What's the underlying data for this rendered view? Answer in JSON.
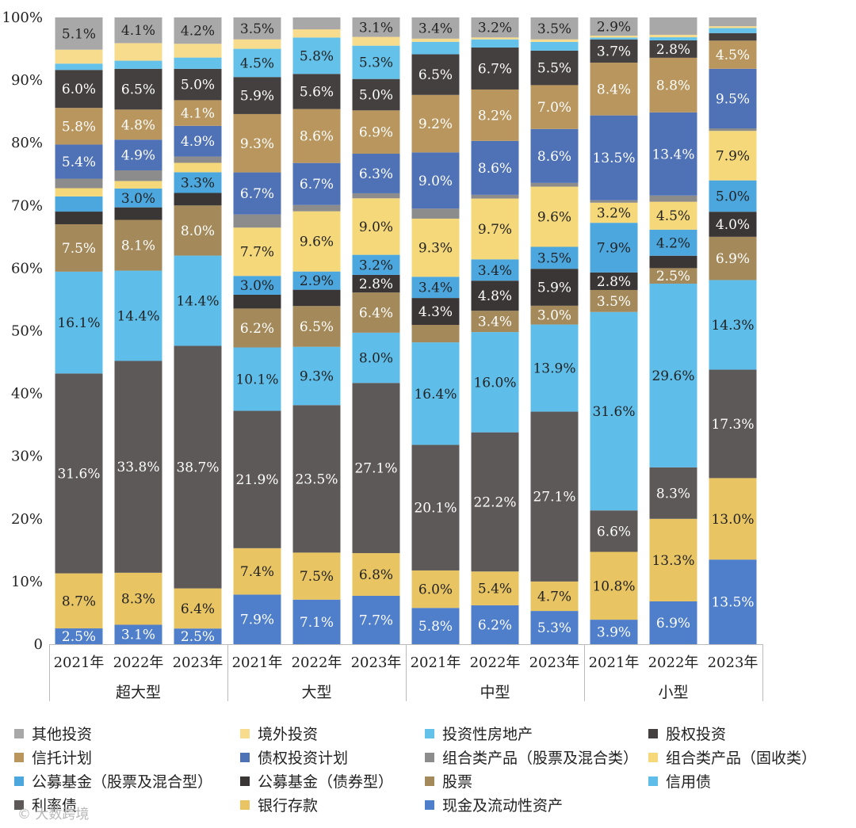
{
  "chart_data": {
    "type": "bar",
    "stacked": true,
    "title": "",
    "xlabel": "",
    "ylabel": "",
    "ylim": [
      0,
      100
    ],
    "y_ticks": [
      "0",
      "10%",
      "20%",
      "30%",
      "40%",
      "50%",
      "60%",
      "70%",
      "80%",
      "90%",
      "100%"
    ],
    "groups": [
      "超大型",
      "大型",
      "中型",
      "小型"
    ],
    "categories": [
      "2021年",
      "2022年",
      "2023年",
      "2021年",
      "2022年",
      "2023年",
      "2021年",
      "2022年",
      "2023年",
      "2021年",
      "2022年",
      "2023年"
    ],
    "series": [
      {
        "name": "现金及流动性资产",
        "color": "#4f7fcb",
        "label_color": "#ffffff",
        "values": [
          2.5,
          3.1,
          2.5,
          7.9,
          7.1,
          7.7,
          5.8,
          6.2,
          5.3,
          3.9,
          6.9,
          13.5
        ]
      },
      {
        "name": "银行存款",
        "color": "#e8c463",
        "label_color": "#222222",
        "values": [
          8.7,
          8.3,
          6.4,
          7.4,
          7.5,
          6.8,
          6.0,
          5.4,
          4.7,
          10.8,
          13.3,
          13.0
        ]
      },
      {
        "name": "利率债",
        "color": "#5d5959",
        "label_color": "#ffffff",
        "values": [
          31.6,
          33.8,
          38.7,
          21.9,
          23.5,
          27.1,
          20.1,
          22.2,
          27.1,
          6.6,
          8.3,
          17.3
        ]
      },
      {
        "name": "信用债",
        "color": "#5ebde9",
        "label_color": "#222222",
        "values": [
          16.1,
          14.4,
          14.4,
          10.1,
          9.3,
          8.0,
          16.4,
          16.0,
          13.9,
          31.6,
          29.6,
          14.3
        ]
      },
      {
        "name": "股票",
        "color": "#a4895a",
        "label_color": "#ffffff",
        "values": [
          7.5,
          8.1,
          8.0,
          6.2,
          6.5,
          6.4,
          2.8,
          3.4,
          3.0,
          3.5,
          2.5,
          6.9
        ]
      },
      {
        "name": "公募基金（债券型）",
        "color": "#3a3635",
        "label_color": "#ffffff",
        "values": [
          2.0,
          2.0,
          2.0,
          2.2,
          2.6,
          2.8,
          4.3,
          4.8,
          5.9,
          2.8,
          2.0,
          4.0
        ]
      },
      {
        "name": "公募基金（股票及混合型）",
        "color": "#4ca7df",
        "label_color": "#222222",
        "values": [
          2.4,
          3.0,
          3.3,
          3.0,
          2.9,
          3.2,
          3.4,
          3.4,
          3.5,
          7.9,
          4.2,
          5.0
        ]
      },
      {
        "name": "组合类产品（固收类）",
        "color": "#f5d87a",
        "label_color": "#222222",
        "values": [
          1.3,
          1.2,
          1.5,
          7.7,
          9.6,
          9.0,
          9.3,
          9.7,
          9.6,
          3.2,
          4.5,
          7.9
        ]
      },
      {
        "name": "组合类产品（股票及混合类）",
        "color": "#8d8c8c",
        "label_color": "#ffffff",
        "values": [
          1.5,
          1.7,
          1.0,
          2.1,
          1.0,
          0.8,
          1.6,
          0.6,
          0.6,
          0.4,
          1.0,
          0.4
        ]
      },
      {
        "name": "债权投资计划",
        "color": "#4f71b5",
        "label_color": "#ffffff",
        "values": [
          5.4,
          4.9,
          4.9,
          6.7,
          6.7,
          6.3,
          9.0,
          8.6,
          8.6,
          13.5,
          13.4,
          9.5
        ]
      },
      {
        "name": "信托计划",
        "color": "#b8965e",
        "label_color": "#ffffff",
        "values": [
          5.8,
          4.8,
          4.1,
          9.3,
          8.6,
          6.9,
          9.2,
          8.2,
          7.0,
          8.4,
          8.8,
          4.5
        ]
      },
      {
        "name": "股权投资",
        "color": "#454040",
        "label_color": "#ffffff",
        "values": [
          6.0,
          6.5,
          5.0,
          5.9,
          5.6,
          5.0,
          6.5,
          6.7,
          5.5,
          3.7,
          2.8,
          1.2
        ]
      },
      {
        "name": "投资性房地产",
        "color": "#63c1ea",
        "label_color": "#222222",
        "values": [
          1.0,
          1.3,
          1.8,
          4.5,
          5.8,
          5.3,
          2.0,
          1.3,
          1.4,
          0.3,
          0.5,
          0.8
        ]
      },
      {
        "name": "境外投资",
        "color": "#f6dc8c",
        "label_color": "#222222",
        "values": [
          2.2,
          2.8,
          2.2,
          1.5,
          1.3,
          1.4,
          0.5,
          0.3,
          0.4,
          0.3,
          0.4,
          0.3
        ]
      },
      {
        "name": "其他投资",
        "color": "#a9a8a8",
        "label_color": "#222222",
        "values": [
          5.1,
          4.1,
          4.2,
          3.5,
          1.9,
          3.1,
          3.4,
          3.2,
          3.5,
          2.9,
          2.8,
          1.4
        ]
      }
    ],
    "data_labels": [
      [
        "2.5%",
        "8.7%",
        "31.6%",
        "16.1%",
        "7.5%",
        "",
        "",
        "",
        "",
        "5.4%",
        "5.8%",
        "6.0%",
        "",
        "",
        "5.1%"
      ],
      [
        "3.1%",
        "8.3%",
        "33.8%",
        "14.4%",
        "8.1%",
        "",
        "3.0%",
        "",
        "",
        "4.9%",
        "4.8%",
        "6.5%",
        "",
        "",
        "4.1%"
      ],
      [
        "2.5%",
        "6.4%",
        "38.7%",
        "14.4%",
        "8.0%",
        "",
        "3.3%",
        "",
        "",
        "4.9%",
        "4.1%",
        "5.0%",
        "",
        "",
        "4.2%"
      ],
      [
        "7.9%",
        "7.4%",
        "21.9%",
        "10.1%",
        "6.2%",
        "",
        "3.0%",
        "7.7%",
        "",
        "6.7%",
        "9.3%",
        "5.9%",
        "4.5%",
        "",
        "3.5%"
      ],
      [
        "7.1%",
        "7.5%",
        "23.5%",
        "9.3%",
        "6.5%",
        "",
        "2.9%",
        "9.6%",
        "",
        "6.7%",
        "8.6%",
        "5.6%",
        "5.8%",
        "",
        ""
      ],
      [
        "7.7%",
        "6.8%",
        "27.1%",
        "8.0%",
        "6.4%",
        "2.8%",
        "3.2%",
        "9.0%",
        "",
        "6.3%",
        "6.9%",
        "5.0%",
        "5.3%",
        "",
        "3.1%"
      ],
      [
        "5.8%",
        "6.0%",
        "20.1%",
        "16.4%",
        "",
        "4.3%",
        "3.4%",
        "9.3%",
        "",
        "9.0%",
        "9.2%",
        "6.5%",
        "",
        "",
        "3.4%"
      ],
      [
        "6.2%",
        "5.4%",
        "22.2%",
        "16.0%",
        "3.4%",
        "4.8%",
        "3.4%",
        "9.7%",
        "",
        "8.6%",
        "8.2%",
        "6.7%",
        "",
        "",
        "3.2%"
      ],
      [
        "5.3%",
        "4.7%",
        "27.1%",
        "13.9%",
        "3.0%",
        "5.9%",
        "3.5%",
        "9.6%",
        "",
        "8.6%",
        "7.0%",
        "5.5%",
        "",
        "",
        "3.5%"
      ],
      [
        "3.9%",
        "10.8%",
        "6.6%",
        "31.6%",
        "3.5%",
        "2.8%",
        "7.9%",
        "3.2%",
        "",
        "13.5%",
        "8.4%",
        "3.7%",
        "",
        "",
        "2.9%"
      ],
      [
        "6.9%",
        "13.3%",
        "8.3%",
        "29.6%",
        "2.5%",
        "",
        "4.2%",
        "4.5%",
        "",
        "13.4%",
        "8.8%",
        "2.8%",
        "",
        "",
        ""
      ],
      [
        "13.5%",
        "13.0%",
        "17.3%",
        "14.3%",
        "6.9%",
        "4.0%",
        "5.0%",
        "7.9%",
        "",
        "9.5%",
        "4.5%",
        "",
        "",
        "",
        ""
      ]
    ],
    "legend": {
      "position": "bottom",
      "columns": 4,
      "items": [
        "其他投资",
        "境外投资",
        "投资性房地产",
        "股权投资",
        "信托计划",
        "债权投资计划",
        "组合类产品（股票及混合类）",
        "组合类产品（固收类）",
        "公募基金（股票及混合型）",
        "公募基金（债券型）",
        "股票",
        "信用债",
        "利率债",
        "银行存款",
        "现金及流动性资产"
      ]
    },
    "grid": false
  },
  "watermark": "© 大数跨境"
}
